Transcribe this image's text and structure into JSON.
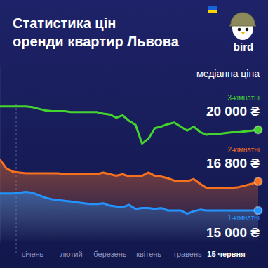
{
  "chart_data": {
    "type": "line",
    "title": [
      "Статистика цін",
      "оренди квартир Львова"
    ],
    "subtitle": "медіанна ціна",
    "logo_text": "bird",
    "categories": [
      null,
      null,
      null,
      null,
      null,
      "січень",
      null,
      null,
      null,
      null,
      null,
      "лютий",
      null,
      null,
      null,
      null,
      null,
      "березень",
      null,
      null,
      null,
      null,
      null,
      "квітень",
      null,
      null,
      null,
      null,
      null,
      "травень",
      null,
      null,
      null,
      null,
      null,
      "15 червня",
      null,
      null,
      null,
      null,
      null
    ],
    "ylim": [
      13000,
      24000
    ],
    "yticks": [],
    "tick_labels": "x",
    "data_labels": true,
    "series": [
      {
        "name": "3-кімнатні",
        "color": "#45d42e",
        "values": [
          21450,
          21450,
          21450,
          21450,
          21450,
          21400,
          21300,
          21200,
          21150,
          21150,
          21150,
          21100,
          21100,
          21100,
          21100,
          21100,
          21000,
          20950,
          20750,
          20900,
          20550,
          20300,
          19150,
          19450,
          20100,
          20200,
          20350,
          20450,
          20200,
          19950,
          20200,
          19850,
          19700,
          19750,
          19750,
          19800,
          19850,
          19850,
          19900,
          19950,
          20000
        ],
        "value_labels": [
          null,
          null,
          null,
          null,
          null,
          null,
          null,
          null,
          null,
          null,
          null,
          null,
          null,
          null,
          null,
          null,
          null,
          null,
          null,
          null,
          null,
          null,
          null,
          null,
          null,
          null,
          null,
          null,
          null,
          null,
          null,
          null,
          null,
          null,
          null,
          null,
          null,
          null,
          null,
          null,
          "20 000 ₴"
        ]
      },
      {
        "name": "2-кімнатні",
        "color": "#f7701e",
        "values": [
          18150,
          17600,
          17400,
          17350,
          17300,
          17300,
          17300,
          17300,
          17300,
          17300,
          17250,
          17250,
          17250,
          17250,
          17250,
          17250,
          17350,
          17250,
          17150,
          17250,
          17100,
          17150,
          17150,
          17350,
          17150,
          17100,
          17000,
          16850,
          16850,
          16800,
          16950,
          16650,
          16400,
          16400,
          16400,
          16400,
          16400,
          16450,
          16550,
          16650,
          16800
        ],
        "value_labels": [
          null,
          null,
          null,
          null,
          null,
          null,
          null,
          null,
          null,
          null,
          null,
          null,
          null,
          null,
          null,
          null,
          null,
          null,
          null,
          null,
          null,
          null,
          null,
          null,
          null,
          null,
          null,
          null,
          null,
          null,
          null,
          null,
          null,
          null,
          null,
          null,
          null,
          null,
          null,
          null,
          "16 800 ₴"
        ]
      },
      {
        "name": "1-кімнатні",
        "color": "#2394ff",
        "values": [
          16050,
          16050,
          16050,
          16100,
          16150,
          16100,
          15950,
          15800,
          15700,
          15650,
          15600,
          15550,
          15500,
          15450,
          15400,
          15400,
          15450,
          15300,
          15250,
          15200,
          15350,
          15100,
          15150,
          15150,
          15100,
          15150,
          15000,
          15000,
          15000,
          14800,
          14950,
          15050,
          15000,
          15000,
          15000,
          15000,
          15000,
          15000,
          15000,
          15000,
          15000
        ],
        "value_labels": [
          null,
          null,
          null,
          null,
          null,
          null,
          null,
          null,
          null,
          null,
          null,
          null,
          null,
          null,
          null,
          null,
          null,
          null,
          null,
          null,
          null,
          null,
          null,
          null,
          null,
          null,
          null,
          null,
          null,
          null,
          null,
          null,
          null,
          null,
          null,
          null,
          null,
          null,
          null,
          null,
          "15 000 ₴"
        ]
      }
    ]
  }
}
